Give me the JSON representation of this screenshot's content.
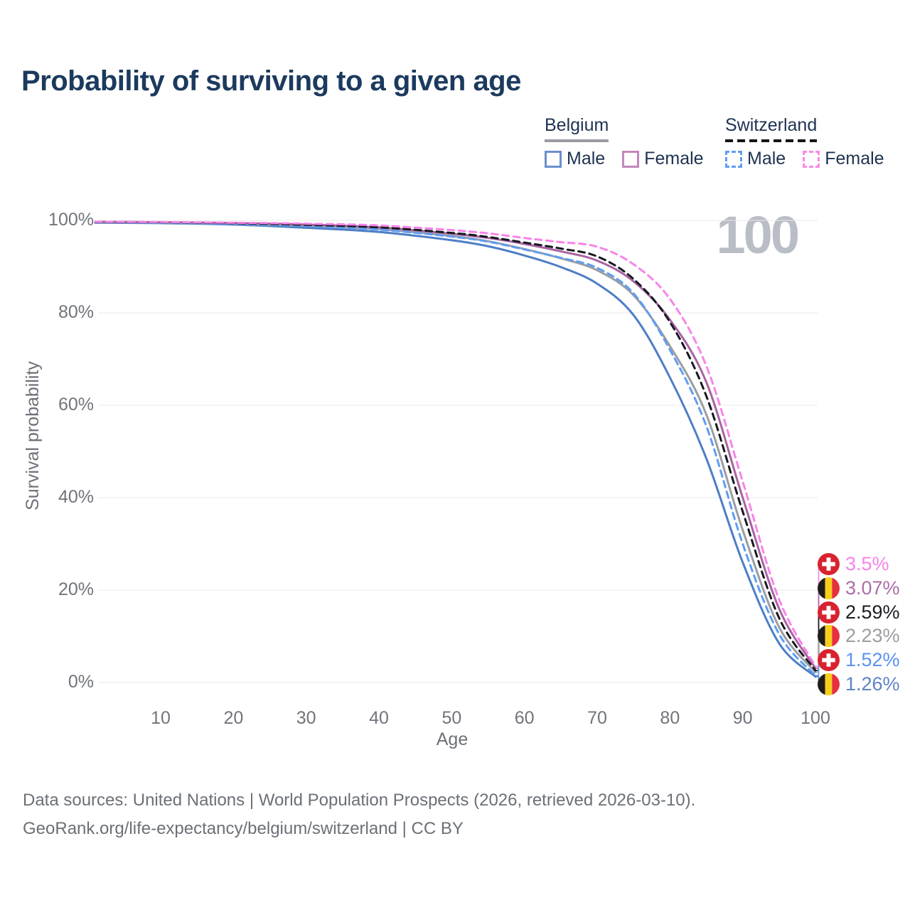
{
  "title": "Probability of surviving to a given age",
  "watermark": "100",
  "legend": {
    "belgium": {
      "label": "Belgium",
      "male": "Male",
      "female": "Female"
    },
    "switzerland": {
      "label": "Switzerland",
      "male": "Male",
      "female": "Female"
    }
  },
  "chart_data": {
    "type": "line",
    "title": "Probability of surviving to a given age",
    "xlabel": "Age",
    "ylabel": "Survival probability",
    "xlim": [
      0,
      100
    ],
    "ylim_percent": [
      0,
      100
    ],
    "grid": "horizontal",
    "x_ticks": [
      10,
      20,
      30,
      40,
      50,
      60,
      70,
      80,
      90,
      100
    ],
    "y_ticks_percent": [
      0,
      20,
      40,
      60,
      80,
      100
    ],
    "legend_position": "top-right",
    "ages": [
      1,
      10,
      20,
      30,
      40,
      50,
      55,
      60,
      65,
      70,
      75,
      80,
      85,
      90,
      95,
      100
    ],
    "series": [
      {
        "name": "Switzerland Female",
        "country": "Switzerland",
        "group": "Female",
        "line": "dashed",
        "color": "#f884e8",
        "values": [
          99.7,
          99.65,
          99.5,
          99.3,
          98.9,
          97.9,
          97.2,
          96.2,
          95.3,
          94.3,
          90.5,
          83.0,
          68.5,
          43.5,
          18.0,
          3.5
        ]
      },
      {
        "name": "Belgium Female",
        "country": "Belgium",
        "group": "Female",
        "line": "solid",
        "color": "#a864a3",
        "values": [
          99.7,
          99.6,
          99.45,
          99.1,
          98.5,
          97.1,
          96.2,
          94.9,
          93.3,
          91.3,
          86.8,
          78.5,
          65.0,
          40.0,
          16.0,
          3.07
        ]
      },
      {
        "name": "Switzerland Both sexes",
        "country": "Switzerland",
        "group": "All",
        "line": "dashed",
        "color": "#17191d",
        "values": [
          99.65,
          99.6,
          99.4,
          99.05,
          98.5,
          97.3,
          96.4,
          95.2,
          93.9,
          92.2,
          87.3,
          78.0,
          62.0,
          37.0,
          14.0,
          2.59
        ]
      },
      {
        "name": "Belgium Both sexes",
        "country": "Belgium",
        "group": "All",
        "line": "solid",
        "color": "#9b9da2",
        "values": [
          99.6,
          99.5,
          99.3,
          98.8,
          98.1,
          96.6,
          95.5,
          93.8,
          91.8,
          89.2,
          83.8,
          72.8,
          58.0,
          33.0,
          12.0,
          2.23
        ]
      },
      {
        "name": "Switzerland Male",
        "country": "Switzerland",
        "group": "Male",
        "line": "dashed",
        "color": "#5f9df3",
        "values": [
          99.6,
          99.5,
          99.25,
          98.8,
          98.0,
          96.5,
          95.4,
          93.7,
          91.9,
          89.7,
          84.2,
          72.0,
          55.5,
          30.0,
          10.5,
          1.52
        ]
      },
      {
        "name": "Belgium Male",
        "country": "Belgium",
        "group": "Male",
        "line": "solid",
        "color": "#4d7ec6",
        "values": [
          99.5,
          99.4,
          99.1,
          98.4,
          97.5,
          95.7,
          94.4,
          92.4,
          89.9,
          86.3,
          79.5,
          66.0,
          48.5,
          26.0,
          8.5,
          1.26
        ]
      }
    ],
    "end_labels": [
      {
        "country": "Switzerland",
        "flag": "swiss-flag",
        "value": "3.5%",
        "value_number": 3.5,
        "color": "#f884e8"
      },
      {
        "country": "Belgium",
        "flag": "belgian-flag",
        "value": "3.07%",
        "value_number": 3.07,
        "color": "#aa6ea6"
      },
      {
        "country": "Switzerland",
        "flag": "swiss-flag",
        "value": "2.59%",
        "value_number": 2.59,
        "color": "#1b1d22"
      },
      {
        "country": "Belgium",
        "flag": "belgian-flag",
        "value": "2.23%",
        "value_number": 2.23,
        "color": "#9b9da2"
      },
      {
        "country": "Switzerland",
        "flag": "swiss-flag",
        "value": "1.52%",
        "value_number": 1.52,
        "color": "#5b92ef"
      },
      {
        "country": "Belgium",
        "flag": "belgian-flag",
        "value": "1.26%",
        "value_number": 1.26,
        "color": "#5e83c4"
      }
    ]
  },
  "footer": {
    "line1": "Data sources: United Nations | World Population Prospects (2026, retrieved 2026-03-10).",
    "line2": "GeoRank.org/life-expectancy/belgium/switzerland | CC BY"
  }
}
